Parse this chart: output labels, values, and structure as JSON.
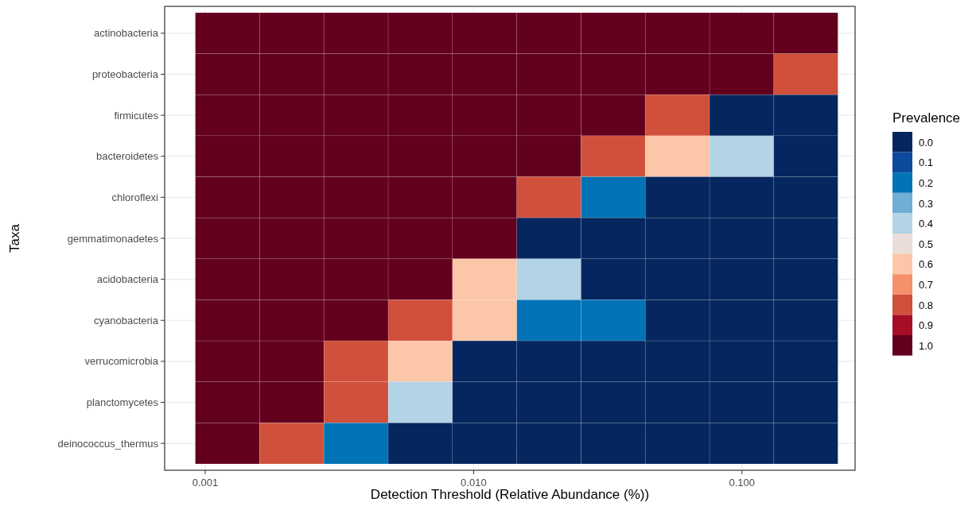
{
  "chart_data": {
    "type": "heatmap",
    "xlabel": "Detection Threshold (Relative Abundance (%))",
    "ylabel": "Taxa",
    "clabel": "Prevalence",
    "x": [
      0.00121,
      0.0021,
      0.00365,
      0.00633,
      0.011,
      0.0191,
      0.0331,
      0.0575,
      0.0998,
      0.173
    ],
    "log": "x",
    "xlim": [
      0.000706,
      0.264
    ],
    "xticks": [
      0.001,
      {
        "value": 0.01,
        "label": "0.010"
      },
      {
        "value": 0.1,
        "label": "0.100"
      }
    ],
    "y_categories": [
      "actinobacteria",
      "proteobacteria",
      "firmicutes",
      "bacteroidetes",
      "chloroflexi",
      "gemmatimonadetes",
      "acidobacteria",
      "cyanobacteria",
      "verrucomicrobia",
      "planctomycetes",
      "deinococcus_thermus"
    ],
    "cells": [
      [
        1,
        1,
        1,
        1,
        1,
        1,
        1,
        1,
        1,
        1
      ],
      [
        1,
        1,
        1,
        1,
        1,
        1,
        1,
        1,
        1,
        0.8
      ],
      [
        1,
        1,
        1,
        1,
        1,
        1,
        1,
        0.8,
        0,
        0
      ],
      [
        1,
        1,
        1,
        1,
        1,
        1,
        0.8,
        0.6,
        0.4,
        0
      ],
      [
        1,
        1,
        1,
        1,
        1,
        0.8,
        0.2,
        0,
        0,
        0
      ],
      [
        1,
        1,
        1,
        1,
        1,
        0,
        0,
        0,
        0,
        0
      ],
      [
        1,
        1,
        1,
        1,
        0.6,
        0.4,
        0,
        0,
        0,
        0
      ],
      [
        1,
        1,
        1,
        0.8,
        0.6,
        0.2,
        0.2,
        0,
        0,
        0
      ],
      [
        1,
        1,
        0.8,
        0.6,
        0,
        0,
        0,
        0,
        0,
        0
      ],
      [
        1,
        1,
        0.8,
        0.4,
        0,
        0,
        0,
        0,
        0,
        0
      ],
      [
        1,
        0.8,
        0.2,
        0,
        0,
        0,
        0,
        0,
        0,
        0
      ]
    ],
    "clim": [
      -0.05,
      1.05
    ],
    "cticks": [
      {
        "value": 0,
        "label": "0.0"
      },
      {
        "value": 0.1,
        "label": "0.1"
      },
      {
        "value": 0.2,
        "label": "0.2"
      },
      {
        "value": 0.3,
        "label": "0.3"
      },
      {
        "value": 0.4,
        "label": "0.4"
      },
      {
        "value": 0.5,
        "label": "0.5"
      },
      {
        "value": 0.6,
        "label": "0.6"
      },
      {
        "value": 0.7,
        "label": "0.7"
      },
      {
        "value": 0.8,
        "label": "0.8"
      },
      {
        "value": 0.9,
        "label": "0.9"
      },
      {
        "value": 1,
        "label": "1.0"
      }
    ],
    "colors": [
      "#05265e",
      "#0b4a9c",
      "#0273b6",
      "#71aed5",
      "#b3d3e7",
      "#e9ddd8",
      "#fcc6a9",
      "#f4916a",
      "#d0503b",
      "#a50e26",
      "#62001d"
    ],
    "grid": true
  }
}
